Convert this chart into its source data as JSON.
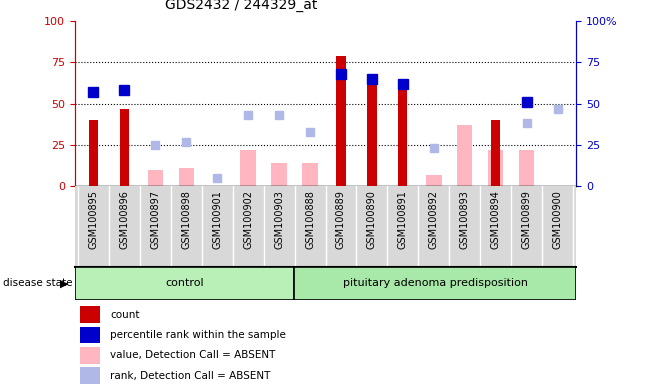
{
  "title": "GDS2432 / 244329_at",
  "samples": [
    "GSM100895",
    "GSM100896",
    "GSM100897",
    "GSM100898",
    "GSM100901",
    "GSM100902",
    "GSM100903",
    "GSM100888",
    "GSM100889",
    "GSM100890",
    "GSM100891",
    "GSM100892",
    "GSM100893",
    "GSM100894",
    "GSM100899",
    "GSM100900"
  ],
  "count_values": [
    40,
    47,
    0,
    0,
    0,
    0,
    0,
    0,
    79,
    63,
    63,
    0,
    0,
    40,
    0,
    0
  ],
  "percentile_rank_values": [
    57,
    58,
    null,
    null,
    null,
    null,
    null,
    null,
    68,
    65,
    62,
    null,
    null,
    null,
    51,
    null
  ],
  "absent_value_values": [
    null,
    null,
    10,
    11,
    null,
    22,
    14,
    14,
    null,
    null,
    null,
    7,
    37,
    22,
    22,
    null
  ],
  "absent_rank_values": [
    null,
    null,
    25,
    27,
    5,
    43,
    43,
    33,
    null,
    null,
    null,
    23,
    null,
    null,
    38,
    47
  ],
  "group_labels": [
    "control",
    "pituitary adenoma predisposition"
  ],
  "group_ranges": [
    [
      0,
      7
    ],
    [
      7,
      16
    ]
  ],
  "group_colors": [
    "#b8f0b8",
    "#a8e8a8"
  ],
  "ylim_left": [
    0,
    100
  ],
  "ylim_right": [
    0,
    100
  ],
  "left_axis_color": "#cc0000",
  "right_axis_color": "#0000cc",
  "count_color": "#cc0000",
  "percentile_color": "#0000cd",
  "absent_value_color": "#ffb6c1",
  "absent_rank_color": "#b0b8e8",
  "dotted_lines": [
    25,
    50,
    75
  ],
  "tick_bg_color": "#d8d8d8",
  "legend_items": [
    {
      "label": "count",
      "color": "#cc0000"
    },
    {
      "label": "percentile rank within the sample",
      "color": "#0000cd"
    },
    {
      "label": "value, Detection Call = ABSENT",
      "color": "#ffb6c1"
    },
    {
      "label": "rank, Detection Call = ABSENT",
      "color": "#b0b8e8"
    }
  ]
}
